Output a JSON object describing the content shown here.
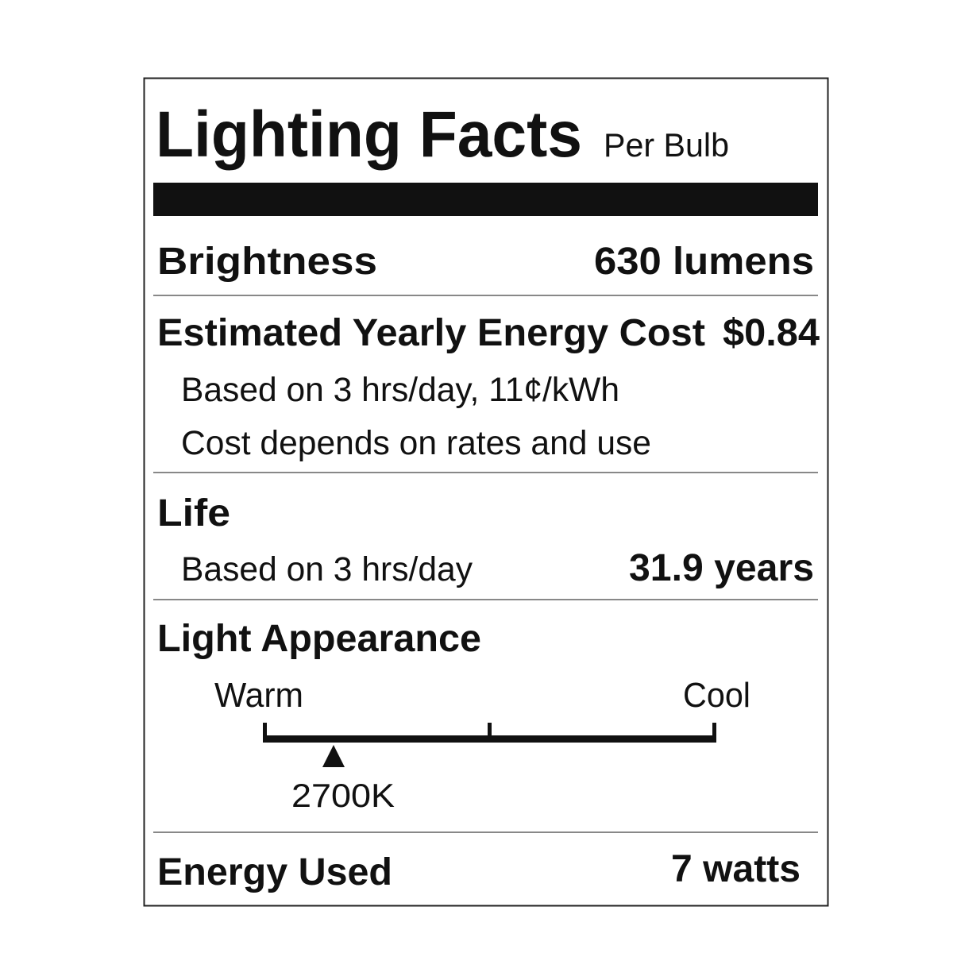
{
  "header": {
    "title": "Lighting Facts",
    "subtitle": "Per Bulb"
  },
  "brightness": {
    "label": "Brightness",
    "value": "630 lumens"
  },
  "cost": {
    "label": "Estimated Yearly Energy Cost",
    "value": "$0.84",
    "notes": [
      "Based on 3 hrs/day, 11¢/kWh",
      "Cost depends on rates and use"
    ]
  },
  "life": {
    "label": "Life",
    "note": "Based on 3 hrs/day",
    "value": "31.9 years"
  },
  "appearance": {
    "label": "Light Appearance",
    "warm": "Warm",
    "cool": "Cool",
    "marker": "2700K"
  },
  "energy": {
    "label": "Energy Used",
    "value": "7 watts"
  }
}
